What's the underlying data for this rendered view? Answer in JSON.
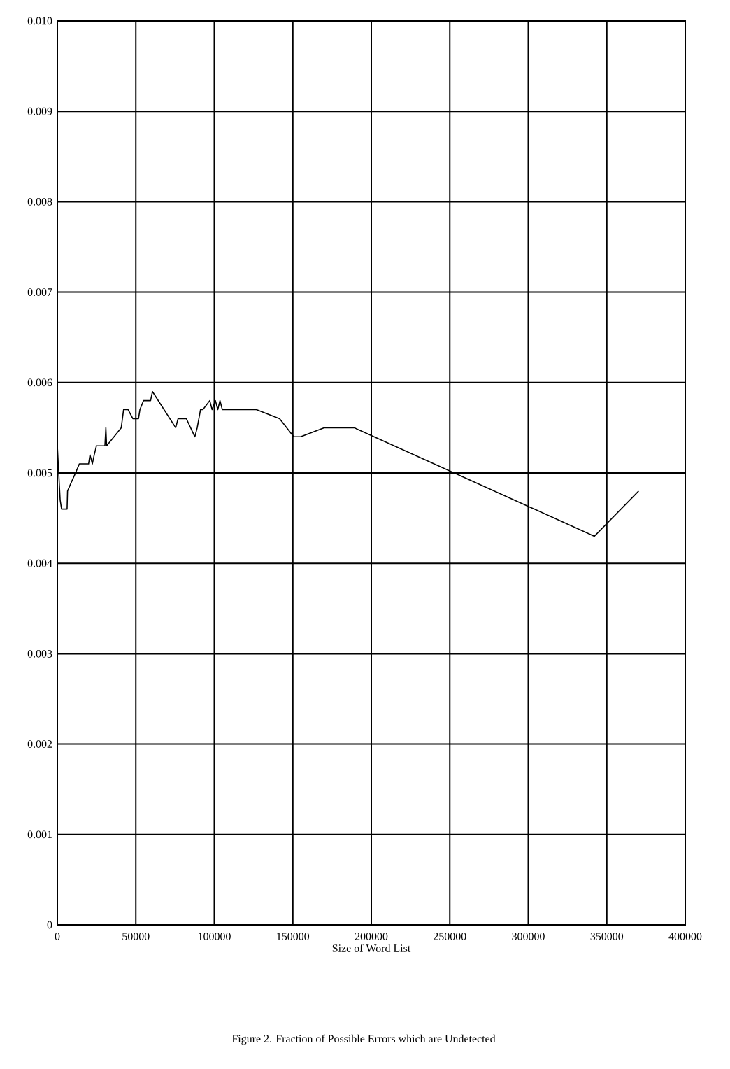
{
  "chart_data": {
    "type": "line",
    "xlabel": "Size of Word List",
    "annotations": [
      "Figure 2. Fraction of Possible Errors which are Undetected"
    ],
    "x": [
      0,
      1800,
      2700,
      6200,
      6500,
      9000,
      11600,
      14000,
      19900,
      20800,
      22300,
      23500,
      24900,
      30300,
      30900,
      31400,
      40700,
      42200,
      45100,
      48100,
      51700,
      52600,
      54900,
      59400,
      60600,
      75400,
      76900,
      82200,
      87600,
      89100,
      91200,
      92700,
      97100,
      98600,
      100700,
      102200,
      103600,
      105100,
      110500,
      126800,
      141600,
      150600,
      155000,
      169900,
      189100,
      342100,
      370300
    ],
    "series": [
      {
        "color": "#000000",
        "values": [
          0.0053,
          0.0047,
          0.0046,
          0.0046,
          0.0048,
          0.0049,
          0.005,
          0.0051,
          0.0051,
          0.0052,
          0.0051,
          0.0052,
          0.0053,
          0.0053,
          0.0055,
          0.0053,
          0.0055,
          0.0057,
          0.0057,
          0.0056,
          0.0056,
          0.0057,
          0.0058,
          0.0058,
          0.0059,
          0.0055,
          0.0056,
          0.0056,
          0.0054,
          0.0055,
          0.0057,
          0.0057,
          0.0058,
          0.0057,
          0.0058,
          0.0057,
          0.0058,
          0.0057,
          0.0057,
          0.0057,
          0.0056,
          0.0054,
          0.0054,
          0.0055,
          0.0055,
          0.0043,
          0.0048
        ]
      }
    ],
    "xlim": [
      0,
      400000
    ],
    "ylim": [
      0,
      0.01
    ],
    "xticks": [
      0,
      50000,
      100000,
      150000,
      200000,
      250000,
      300000,
      350000,
      400000
    ],
    "yticks": [
      0,
      {
        "value": 0.001,
        "label": "0.001"
      },
      {
        "value": 0.002,
        "label": "0.002"
      },
      {
        "value": 0.003,
        "label": "0.003"
      },
      {
        "value": 0.004,
        "label": "0.004"
      },
      {
        "value": 0.005,
        "label": "0.005"
      },
      {
        "value": 0.006,
        "label": "0.006"
      },
      {
        "value": 0.007,
        "label": "0.007"
      },
      {
        "value": 0.008,
        "label": "0.008"
      },
      {
        "value": 0.009,
        "label": "0.009"
      },
      {
        "value": 0.01,
        "label": "0.010"
      }
    ],
    "grid": true,
    "marker": "none",
    "line_style": "solid"
  }
}
